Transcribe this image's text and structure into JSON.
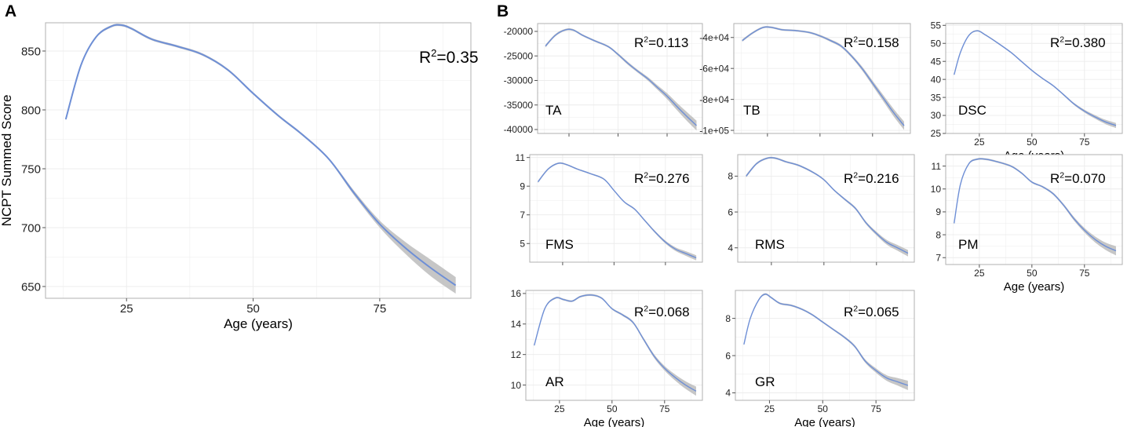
{
  "panel_labels": {
    "a": "A",
    "b": "B"
  },
  "colors": {
    "line": "#6e8fd6",
    "ribbon": "#b3b3b3",
    "frame": "#b0b0b0",
    "grid": "#ececec",
    "background": "#ffffff"
  },
  "chart_data": [
    {
      "id": "A",
      "type": "line",
      "title": "",
      "xlabel": "Age (years)",
      "ylabel": "NCPT Summed Score",
      "xlim": [
        9,
        93
      ],
      "ylim": [
        640,
        874
      ],
      "grid": true,
      "x_ticks": [
        25,
        50,
        75
      ],
      "y_ticks": [
        650,
        700,
        750,
        800,
        850
      ],
      "annotation": {
        "r2_label": "R",
        "r2_sup": "2",
        "r2_value": "=0.35",
        "label": ""
      },
      "series": [
        {
          "name": "NCPT Summed Score",
          "x": [
            13,
            16,
            19,
            22,
            24,
            26,
            30,
            35,
            40,
            45,
            50,
            55,
            60,
            65,
            70,
            75,
            80,
            85,
            90
          ],
          "y": [
            792,
            838,
            862,
            871,
            872,
            869,
            860,
            854,
            847,
            834,
            814,
            795,
            778,
            758,
            729,
            703,
            683,
            666,
            651
          ],
          "ci": [
            1,
            1,
            1,
            1,
            1,
            1,
            1,
            1,
            1,
            1,
            1,
            1,
            1,
            1,
            2,
            3,
            5,
            7,
            7
          ]
        }
      ]
    },
    {
      "id": "TA",
      "type": "line",
      "xlabel": "",
      "ylabel": "",
      "xlim": [
        9,
        93
      ],
      "ylim": [
        -40800,
        -18400
      ],
      "grid": true,
      "x_ticks": [
        25,
        50,
        75
      ],
      "y_ticks": [
        -40000,
        -35000,
        -30000,
        -25000,
        -20000
      ],
      "y_tick_labels": [
        "-40000",
        "-35000",
        "-30000",
        "-25000",
        "-20000"
      ],
      "annotation": {
        "r2_label": "R",
        "r2_sup": "2",
        "r2_value": "=0.113",
        "label": "TA"
      },
      "series": [
        {
          "name": "TA",
          "x": [
            13,
            18,
            23,
            27,
            32,
            38,
            45,
            50,
            55,
            60,
            65,
            70,
            75,
            80,
            85,
            90
          ],
          "y": [
            -23000,
            -20800,
            -19700,
            -19700,
            -20800,
            -21900,
            -23100,
            -24700,
            -26500,
            -28100,
            -29600,
            -31400,
            -33200,
            -35300,
            -37300,
            -39200
          ],
          "ci": [
            300,
            250,
            200,
            200,
            200,
            200,
            200,
            250,
            300,
            300,
            350,
            450,
            600,
            750,
            900,
            1000
          ]
        }
      ]
    },
    {
      "id": "TB",
      "type": "line",
      "xlabel": "",
      "ylabel": "",
      "xlim": [
        9,
        93
      ],
      "ylim": [
        -102000,
        -31000
      ],
      "grid": true,
      "x_ticks": [
        25,
        50,
        75
      ],
      "y_ticks": [
        -100000,
        -80000,
        -60000,
        -40000
      ],
      "y_tick_labels": [
        "-1e+05",
        "-8e+04",
        "-6e+04",
        "-4e+04"
      ],
      "annotation": {
        "r2_label": "R",
        "r2_sup": "2",
        "r2_value": "=0.158",
        "label": "TB"
      },
      "series": [
        {
          "name": "TB",
          "x": [
            13,
            18,
            23,
            27,
            32,
            38,
            45,
            50,
            55,
            60,
            65,
            70,
            75,
            80,
            85,
            90
          ],
          "y": [
            -42000,
            -37000,
            -33500,
            -33500,
            -35000,
            -35500,
            -36800,
            -39000,
            -42000,
            -45500,
            -52000,
            -60000,
            -69500,
            -79000,
            -88500,
            -97000
          ],
          "ci": [
            800,
            700,
            600,
            600,
            600,
            600,
            600,
            700,
            800,
            900,
            1000,
            1300,
            1600,
            2000,
            2400,
            2700
          ]
        }
      ]
    },
    {
      "id": "DSC",
      "type": "line",
      "xlabel": "Age (years)",
      "ylabel": "",
      "xlim": [
        9,
        93
      ],
      "ylim": [
        25,
        55.5
      ],
      "grid": true,
      "x_ticks": [
        25,
        50,
        75
      ],
      "y_ticks": [
        25,
        30,
        35,
        40,
        45,
        50,
        55
      ],
      "y_tick_labels": [
        "25",
        "30",
        "35",
        "40",
        "45",
        "50",
        "55"
      ],
      "annotation": {
        "r2_label": "R",
        "r2_sup": "2",
        "r2_value": "=0.380",
        "label": "DSC"
      },
      "series": [
        {
          "name": "DSC",
          "x": [
            13,
            16,
            20,
            24,
            28,
            33,
            40,
            45,
            50,
            55,
            60,
            65,
            70,
            75,
            80,
            85,
            90
          ],
          "y": [
            41.3,
            47.5,
            52.2,
            53.5,
            52.3,
            50.4,
            47.5,
            45,
            42.5,
            40.3,
            38.3,
            35.8,
            33.2,
            31.2,
            29.6,
            28.2,
            27.2
          ],
          "ci": [
            0.3,
            0.25,
            0.2,
            0.2,
            0.2,
            0.2,
            0.2,
            0.2,
            0.2,
            0.2,
            0.2,
            0.25,
            0.3,
            0.4,
            0.5,
            0.6,
            0.7
          ]
        }
      ]
    },
    {
      "id": "FMS",
      "type": "line",
      "xlabel": "",
      "ylabel": "",
      "xlim": [
        9,
        93
      ],
      "ylim": [
        3.7,
        11.2
      ],
      "grid": true,
      "x_ticks": [
        25,
        50,
        75
      ],
      "y_ticks": [
        5,
        7,
        9,
        11
      ],
      "y_tick_labels": [
        "5",
        "7",
        "9",
        "11"
      ],
      "annotation": {
        "r2_label": "R",
        "r2_sup": "2",
        "r2_value": "=0.276",
        "label": "FMS"
      },
      "series": [
        {
          "name": "FMS",
          "x": [
            13,
            18,
            23,
            27,
            32,
            38,
            45,
            50,
            55,
            60,
            65,
            70,
            75,
            80,
            85,
            90
          ],
          "y": [
            9.3,
            10.2,
            10.6,
            10.5,
            10.2,
            9.9,
            9.5,
            8.7,
            7.9,
            7.4,
            6.6,
            5.8,
            5.1,
            4.6,
            4.3,
            4.0
          ],
          "ci": [
            0.08,
            0.06,
            0.05,
            0.05,
            0.05,
            0.05,
            0.05,
            0.05,
            0.05,
            0.06,
            0.07,
            0.08,
            0.1,
            0.13,
            0.16,
            0.18
          ]
        }
      ]
    },
    {
      "id": "RMS",
      "type": "line",
      "xlabel": "",
      "ylabel": "",
      "xlim": [
        9,
        93
      ],
      "ylim": [
        3.2,
        9.2
      ],
      "grid": true,
      "x_ticks": [
        25,
        50,
        75
      ],
      "y_ticks": [
        4,
        6,
        8
      ],
      "y_tick_labels": [
        "4",
        "6",
        "8"
      ],
      "annotation": {
        "r2_label": "R",
        "r2_sup": "2",
        "r2_value": "=0.216",
        "label": "RMS"
      },
      "series": [
        {
          "name": "RMS",
          "x": [
            13,
            18,
            23,
            27,
            32,
            38,
            45,
            50,
            55,
            60,
            65,
            70,
            75,
            80,
            85,
            90
          ],
          "y": [
            8.0,
            8.7,
            9.0,
            9.0,
            8.8,
            8.6,
            8.2,
            7.8,
            7.2,
            6.7,
            6.2,
            5.4,
            4.8,
            4.3,
            4.0,
            3.7
          ],
          "ci": [
            0.08,
            0.06,
            0.05,
            0.05,
            0.05,
            0.05,
            0.05,
            0.05,
            0.05,
            0.06,
            0.07,
            0.08,
            0.1,
            0.13,
            0.16,
            0.18
          ]
        }
      ]
    },
    {
      "id": "PM",
      "type": "line",
      "xlabel": "Age (years)",
      "ylabel": "",
      "xlim": [
        9,
        93
      ],
      "ylim": [
        6.7,
        11.5
      ],
      "grid": true,
      "x_ticks": [
        25,
        50,
        75
      ],
      "y_ticks": [
        7,
        8,
        9,
        10,
        11
      ],
      "y_tick_labels": [
        "7",
        "8",
        "9",
        "10",
        "11"
      ],
      "annotation": {
        "r2_label": "R",
        "r2_sup": "2",
        "r2_value": "=0.070",
        "label": "PM"
      },
      "series": [
        {
          "name": "PM",
          "x": [
            13,
            16,
            20,
            24,
            28,
            33,
            40,
            45,
            50,
            55,
            60,
            65,
            70,
            75,
            80,
            85,
            90
          ],
          "y": [
            8.5,
            10.2,
            11.1,
            11.3,
            11.3,
            11.2,
            11.0,
            10.7,
            10.3,
            10.1,
            9.8,
            9.3,
            8.7,
            8.2,
            7.8,
            7.5,
            7.3
          ],
          "ci": [
            0.06,
            0.05,
            0.04,
            0.04,
            0.04,
            0.04,
            0.04,
            0.04,
            0.04,
            0.04,
            0.05,
            0.06,
            0.08,
            0.1,
            0.13,
            0.16,
            0.2
          ]
        }
      ]
    },
    {
      "id": "AR",
      "type": "line",
      "xlabel": "Age (years)",
      "ylabel": "",
      "xlim": [
        9,
        93
      ],
      "ylim": [
        9.0,
        16.2
      ],
      "grid": true,
      "x_ticks": [
        25,
        50,
        75
      ],
      "y_ticks": [
        10,
        12,
        14,
        16
      ],
      "y_tick_labels": [
        "10",
        "12",
        "14",
        "16"
      ],
      "annotation": {
        "r2_label": "R",
        "r2_sup": "2",
        "r2_value": "=0.068",
        "label": "AR"
      },
      "series": [
        {
          "name": "AR",
          "x": [
            13,
            18,
            23,
            27,
            31,
            35,
            40,
            45,
            50,
            55,
            60,
            65,
            70,
            75,
            80,
            85,
            90
          ],
          "y": [
            12.6,
            15.0,
            15.7,
            15.6,
            15.5,
            15.8,
            15.9,
            15.7,
            15.0,
            14.6,
            14.1,
            13.0,
            11.9,
            11.1,
            10.5,
            10.0,
            9.6
          ],
          "ci": [
            0.08,
            0.07,
            0.06,
            0.06,
            0.06,
            0.06,
            0.06,
            0.06,
            0.06,
            0.07,
            0.08,
            0.1,
            0.12,
            0.15,
            0.2,
            0.25,
            0.3
          ]
        }
      ]
    },
    {
      "id": "GR",
      "type": "line",
      "xlabel": "Age (years)",
      "ylabel": "",
      "xlim": [
        9,
        93
      ],
      "ylim": [
        3.6,
        9.5
      ],
      "grid": true,
      "x_ticks": [
        25,
        50,
        75
      ],
      "y_ticks": [
        4,
        6,
        8
      ],
      "y_tick_labels": [
        "4",
        "6",
        "8"
      ],
      "annotation": {
        "r2_label": "R",
        "r2_sup": "2",
        "r2_value": "=0.065",
        "label": "GR"
      },
      "series": [
        {
          "name": "GR",
          "x": [
            13,
            16,
            20,
            23,
            26,
            30,
            35,
            40,
            45,
            50,
            55,
            60,
            65,
            70,
            75,
            80,
            85,
            90
          ],
          "y": [
            6.6,
            8.0,
            9.0,
            9.3,
            9.1,
            8.8,
            8.7,
            8.5,
            8.2,
            7.8,
            7.4,
            7.0,
            6.5,
            5.7,
            5.2,
            4.8,
            4.6,
            4.4
          ],
          "ci": [
            0.06,
            0.05,
            0.05,
            0.05,
            0.05,
            0.05,
            0.05,
            0.05,
            0.05,
            0.05,
            0.05,
            0.06,
            0.07,
            0.09,
            0.12,
            0.15,
            0.2,
            0.25
          ]
        }
      ]
    }
  ]
}
